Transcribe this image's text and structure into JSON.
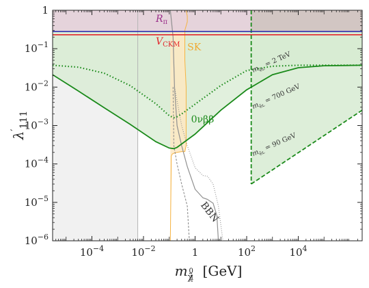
{
  "chart_data": {
    "type": "line",
    "title": "",
    "xlabel": "m_{\\tilde\\chi_1^0} [GeV]",
    "ylabel": "\\lambda'_{111}",
    "xscale": "log",
    "yscale": "log",
    "xlim": [
      3e-06,
      3000000
    ],
    "ylim": [
      1e-06,
      1
    ],
    "x_ticks": [
      {
        "value": 0.0001,
        "base": "10",
        "exp": "−4"
      },
      {
        "value": 0.01,
        "base": "10",
        "exp": "−2"
      },
      {
        "value": 1,
        "base": "1",
        "exp": ""
      },
      {
        "value": 100,
        "base": "10",
        "exp": "2"
      },
      {
        "value": 10000,
        "base": "10",
        "exp": "4"
      }
    ],
    "y_ticks": [
      {
        "value": 1,
        "base": "1",
        "exp": ""
      },
      {
        "value": 0.1,
        "base": "10",
        "exp": "−1"
      },
      {
        "value": 0.01,
        "base": "10",
        "exp": "−2"
      },
      {
        "value": 0.001,
        "base": "10",
        "exp": "−3"
      },
      {
        "value": 0.0001,
        "base": "10",
        "exp": "−4"
      },
      {
        "value": 1e-05,
        "base": "10",
        "exp": "−5"
      },
      {
        "value": 1e-06,
        "base": "10",
        "exp": "−6"
      }
    ],
    "grid": false,
    "legend": "none",
    "colors": {
      "green": "#1a8a1a",
      "green_fill": "#e9f4e6",
      "green_fill_dark": "#d7ebd2",
      "purple_fill": "#e5cfdc",
      "red": "#e3262b",
      "blue": "#2f2fae",
      "orange": "#f5b342",
      "orange_fill": "#fde8c2",
      "grey": "#8f8f8f",
      "grey_fill": "#f1f1f1"
    },
    "bounds": {
      "r_pi": 0.28,
      "v_ckm": 0.23,
      "lep_mass_gev": 150
    },
    "annotations": [
      {
        "id": "r-pi",
        "text": "Rπ",
        "base": "R",
        "sub": "π",
        "color": "#9a2e8a",
        "x": 0.03,
        "y": 0.5
      },
      {
        "id": "v-ckm",
        "text": "V_CKM",
        "base": "V",
        "sub": "CKM",
        "color": "#e3262b",
        "x": 0.03,
        "y": 0.13
      },
      {
        "id": "sk",
        "text": "SK",
        "color": "#f0a830",
        "x": 0.5,
        "y": 0.09
      },
      {
        "id": "onbb",
        "text": "0νββ",
        "color": "#1a8a1a",
        "x": 0.7,
        "y": 0.0012
      },
      {
        "id": "bbn",
        "text": "BBN",
        "color": "#333333",
        "x": 1.6,
        "y": 8.5e-06,
        "rot": 52
      },
      {
        "id": "m2tev",
        "text": "m_eL = 2 TeV",
        "base": "m",
        "sub": "ẽʟ",
        "rest": " = 2 TeV",
        "color": "#333333",
        "x": 180,
        "y": 0.024,
        "rot": -24
      },
      {
        "id": "m700",
        "text": "m_eL = 700 GeV",
        "base": "m",
        "sub": "ẽʟ",
        "rest": " = 700 GeV",
        "color": "#333333",
        "x": 180,
        "y": 0.0027,
        "rot": -24
      },
      {
        "id": "m90",
        "text": "m_eL = 90 GeV",
        "base": "m",
        "sub": "ẽʟ",
        "rest": " = 90 GeV",
        "color": "#333333",
        "x": 180,
        "y": 0.00016,
        "rot": -24
      }
    ],
    "series": [
      {
        "id": "onbb-700",
        "style": "solid",
        "color": "#1a8a1a",
        "x": [
          3e-06,
          3e-05,
          0.0003,
          0.003,
          0.03,
          0.1,
          0.15,
          0.2,
          0.3,
          1,
          10,
          100,
          1000,
          10000,
          100000,
          3000000
        ],
        "y": [
          0.021,
          0.0079,
          0.0029,
          0.00108,
          0.00038,
          0.00026,
          0.00025,
          0.00027,
          0.00033,
          0.0006,
          0.0025,
          0.0085,
          0.021,
          0.032,
          0.036,
          0.037
        ]
      },
      {
        "id": "onbb-2tev",
        "style": "dotted",
        "color": "#1a8a1a",
        "x": [
          3e-06,
          3e-05,
          0.0003,
          0.003,
          0.03,
          0.1,
          0.15,
          0.2,
          0.3,
          1,
          10,
          100,
          1000,
          10000,
          100000,
          3000000
        ],
        "y": [
          0.037,
          0.033,
          0.023,
          0.011,
          0.0037,
          0.0018,
          0.0016,
          0.0017,
          0.002,
          0.0036,
          0.011,
          0.027,
          0.035,
          0.037,
          0.037,
          0.037
        ]
      },
      {
        "id": "onbb-90",
        "style": "dashed",
        "color": "#1a8a1a",
        "x": [
          150,
          3000000
        ],
        "y": [
          3e-05,
          0.00251
        ]
      },
      {
        "id": "bbn-solid",
        "style": "solid",
        "color": "#8f8f8f",
        "x": [
          0.11,
          0.14,
          0.16,
          0.2,
          0.3,
          0.5,
          1,
          2,
          3,
          5,
          7,
          8
        ],
        "y": [
          1,
          0.2,
          0.01,
          0.001,
          0.0003,
          8.5e-05,
          2.2e-05,
          1.32e-05,
          1.2e-05,
          9.5e-06,
          4.5e-06,
          1e-06
        ]
      },
      {
        "id": "bbn-dashed",
        "style": "dashed",
        "color": "#8f8f8f",
        "x": [
          0.14,
          0.15,
          0.2,
          0.3,
          0.5,
          0.6
        ],
        "y": [
          0.01,
          0.0003,
          0.0001,
          3e-05,
          8e-06,
          1e-06
        ]
      },
      {
        "id": "bbn-dotted",
        "style": "dotted",
        "color": "#8f8f8f",
        "x": [
          0.16,
          0.3,
          0.5,
          1,
          2,
          3,
          5,
          8,
          12
        ],
        "y": [
          0.01,
          0.001,
          0.0003,
          8e-05,
          5e-05,
          4.8e-05,
          3e-05,
          8e-06,
          1e-06
        ]
      },
      {
        "id": "sk-boundary",
        "style": "solid",
        "color": "#f5b342",
        "x": [
          0.11,
          0.12,
          0.13,
          0.15,
          0.2,
          0.3,
          0.4,
          0.45,
          0.45,
          0.4,
          0.4,
          0.5,
          0.5,
          0.45
        ],
        "y": [
          1e-06,
          0.00016,
          0.00018,
          0.00019,
          0.0002,
          0.00021,
          0.00021,
          0.0003,
          0.01,
          0.05,
          0.3,
          0.5,
          0.7,
          1
        ]
      },
      {
        "id": "grey-vertical",
        "style": "solid",
        "color": "#b5b5b5",
        "x": [
          0.006,
          0.006
        ],
        "y": [
          1e-06,
          1
        ]
      }
    ]
  }
}
